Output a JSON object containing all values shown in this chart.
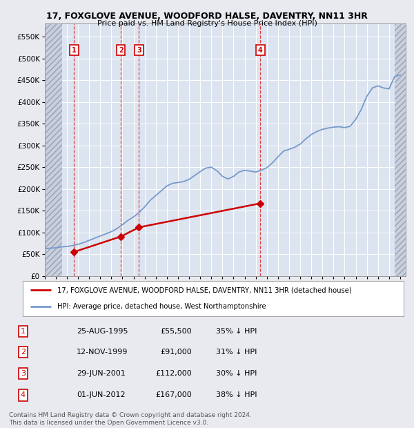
{
  "title": "17, FOXGLOVE AVENUE, WOODFORD HALSE, DAVENTRY, NN11 3HR",
  "subtitle": "Price paid vs. HM Land Registry's House Price Index (HPI)",
  "ytick_values": [
    0,
    50000,
    100000,
    150000,
    200000,
    250000,
    300000,
    350000,
    400000,
    450000,
    500000,
    550000
  ],
  "ylim": [
    0,
    580000
  ],
  "xlim_start": 1993.0,
  "xlim_end": 2025.5,
  "hatch_left_end": 1994.58,
  "hatch_right_start": 2024.5,
  "transactions": [
    {
      "label": "1",
      "date": 1995.65,
      "price": 55500,
      "text": "25-AUG-1995",
      "price_text": "£55,500",
      "hpi_text": "35% ↓ HPI"
    },
    {
      "label": "2",
      "date": 1999.87,
      "price": 91000,
      "text": "12-NOV-1999",
      "price_text": "£91,000",
      "hpi_text": "31% ↓ HPI"
    },
    {
      "label": "3",
      "date": 2001.49,
      "price": 112000,
      "text": "29-JUN-2001",
      "price_text": "£112,000",
      "hpi_text": "30% ↓ HPI"
    },
    {
      "label": "4",
      "date": 2012.42,
      "price": 167000,
      "text": "01-JUN-2012",
      "price_text": "£167,000",
      "hpi_text": "38% ↓ HPI"
    }
  ],
  "hpi_line": {
    "dates": [
      1993.0,
      1993.5,
      1994.0,
      1994.5,
      1995.0,
      1995.5,
      1996.0,
      1996.5,
      1997.0,
      1997.5,
      1998.0,
      1998.5,
      1999.0,
      1999.5,
      2000.0,
      2000.5,
      2001.0,
      2001.5,
      2002.0,
      2002.5,
      2003.0,
      2003.5,
      2004.0,
      2004.5,
      2005.0,
      2005.5,
      2006.0,
      2006.5,
      2007.0,
      2007.5,
      2008.0,
      2008.5,
      2009.0,
      2009.5,
      2010.0,
      2010.5,
      2011.0,
      2011.5,
      2012.0,
      2012.5,
      2013.0,
      2013.5,
      2014.0,
      2014.5,
      2015.0,
      2015.5,
      2016.0,
      2016.5,
      2017.0,
      2017.5,
      2018.0,
      2018.5,
      2019.0,
      2019.5,
      2020.0,
      2020.5,
      2021.0,
      2021.5,
      2022.0,
      2022.5,
      2023.0,
      2023.5,
      2024.0,
      2024.5,
      2025.0
    ],
    "values": [
      63000,
      64000,
      65000,
      67000,
      68000,
      70000,
      73000,
      77000,
      82000,
      87000,
      92000,
      97000,
      102000,
      109000,
      118000,
      128000,
      136000,
      146000,
      159000,
      174000,
      185000,
      196000,
      207000,
      213000,
      215000,
      217000,
      222000,
      231000,
      240000,
      248000,
      250000,
      242000,
      229000,
      223000,
      229000,
      239000,
      243000,
      241000,
      239000,
      243000,
      249000,
      260000,
      274000,
      287000,
      291000,
      296000,
      303000,
      315000,
      325000,
      332000,
      337000,
      340000,
      342000,
      343000,
      341000,
      344000,
      360000,
      383000,
      413000,
      432000,
      437000,
      432000,
      430000,
      458000,
      462000
    ]
  },
  "price_line": {
    "dates": [
      1995.65,
      1999.87,
      2001.49,
      2012.42
    ],
    "values": [
      55500,
      91000,
      112000,
      167000
    ]
  },
  "bg_color": "#e8eaf0",
  "plot_bg_color": "#dce4f0",
  "grid_color": "#ffffff",
  "hatch_color": "#c8d0e0",
  "red_line_color": "#cc0000",
  "blue_line_color": "#7799cc",
  "marker_color": "#cc0000",
  "vline_color": "#dd3333",
  "legend_label_red": "17, FOXGLOVE AVENUE, WOODFORD HALSE, DAVENTRY, NN11 3HR (detached house)",
  "legend_label_blue": "HPI: Average price, detached house, West Northamptonshire",
  "footnote": "Contains HM Land Registry data © Crown copyright and database right 2024.\nThis data is licensed under the Open Government Licence v3.0."
}
